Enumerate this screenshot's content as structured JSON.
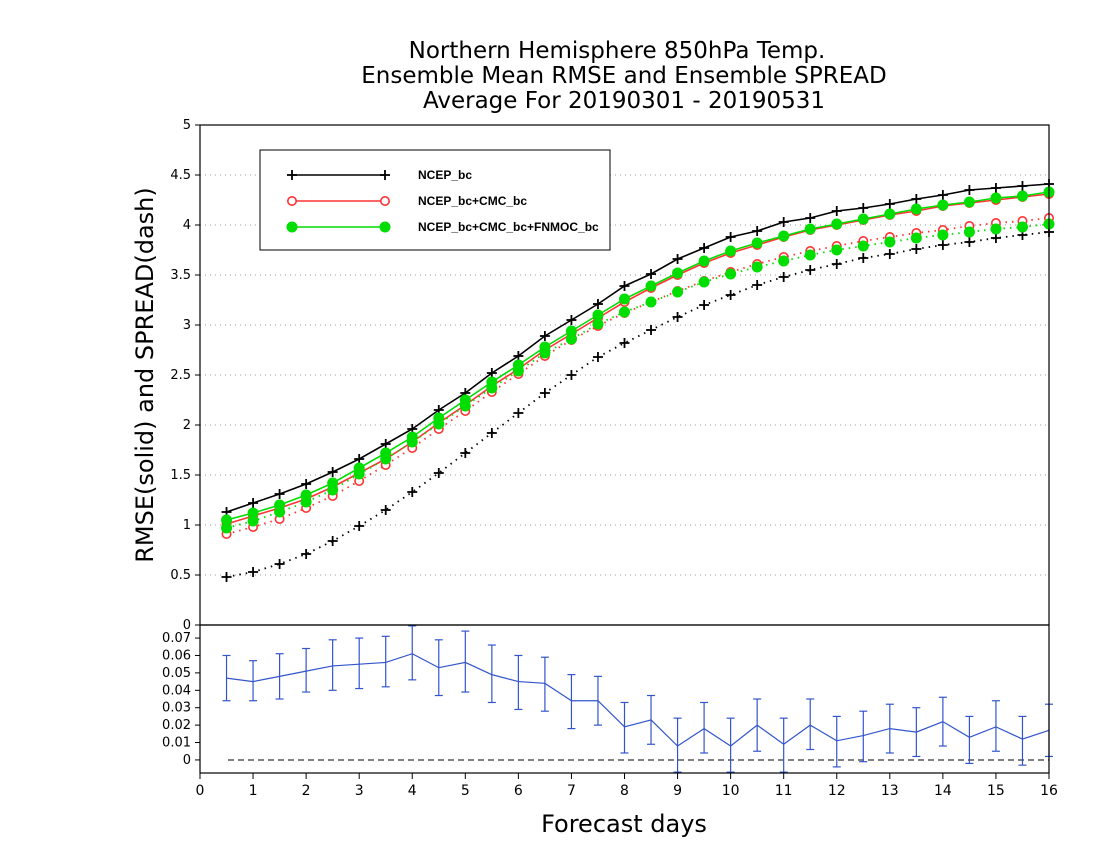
{
  "chart_data": [
    {
      "type": "line",
      "panel": "top",
      "title_lines": [
        "Northern Hemisphere 850hPa Temp.",
        "Ensemble Mean RMSE and Ensemble SPREAD",
        "Average For 20190301 - 20190531"
      ],
      "ylabel": "RMSE(solid) and SPREAD(dash)",
      "xlim": [
        0,
        16
      ],
      "ylim": [
        0,
        5
      ],
      "yticks": [
        "0",
        "0.5",
        "1",
        "1.5",
        "2",
        "2.5",
        "3",
        "3.5",
        "4",
        "4.5",
        "5"
      ],
      "grid": "horizontal dotted",
      "legend_position": "top-left",
      "legend": [
        "NCEP_bc",
        "NCEP_bc+CMC_bc",
        "NCEP_bc+CMC_bc+FNMOC_bc"
      ],
      "x": [
        0.5,
        1,
        1.5,
        2,
        2.5,
        3,
        3.5,
        4,
        4.5,
        5,
        5.5,
        6,
        6.5,
        7,
        7.5,
        8,
        8.5,
        9,
        9.5,
        10,
        10.5,
        11,
        11.5,
        12,
        12.5,
        13,
        13.5,
        14,
        14.5,
        15,
        15.5,
        16
      ],
      "series": [
        {
          "name": "NCEP_bc",
          "style": "solid",
          "marker": "plus",
          "color": "#000000",
          "values": [
            1.13,
            1.22,
            1.31,
            1.41,
            1.53,
            1.66,
            1.81,
            1.96,
            2.15,
            2.32,
            2.52,
            2.69,
            2.89,
            3.05,
            3.21,
            3.39,
            3.51,
            3.66,
            3.77,
            3.88,
            3.94,
            4.03,
            4.07,
            4.14,
            4.17,
            4.21,
            4.26,
            4.3,
            4.35,
            4.37,
            4.39,
            4.41
          ]
        },
        {
          "name": "NCEP_bc+CMC_bc",
          "style": "solid",
          "marker": "circle",
          "color": "#ff3333",
          "values": [
            1.01,
            1.09,
            1.17,
            1.26,
            1.38,
            1.52,
            1.66,
            1.83,
            2.02,
            2.2,
            2.39,
            2.56,
            2.75,
            2.91,
            3.07,
            3.23,
            3.37,
            3.5,
            3.62,
            3.72,
            3.8,
            3.88,
            3.95,
            4.0,
            4.05,
            4.1,
            4.14,
            4.19,
            4.22,
            4.25,
            4.28,
            4.31
          ]
        },
        {
          "name": "NCEP_bc+CMC_bc+FNMOC_bc",
          "style": "solid",
          "marker": "filled-circle",
          "color": "#00dd00",
          "values": [
            1.05,
            1.12,
            1.2,
            1.3,
            1.42,
            1.57,
            1.72,
            1.88,
            2.07,
            2.25,
            2.43,
            2.6,
            2.78,
            2.94,
            3.1,
            3.26,
            3.39,
            3.52,
            3.64,
            3.74,
            3.82,
            3.89,
            3.96,
            4.01,
            4.06,
            4.11,
            4.16,
            4.2,
            4.23,
            4.27,
            4.29,
            4.33
          ]
        },
        {
          "name": "NCEP_bc",
          "style": "dotted",
          "marker": "plus",
          "color": "#000000",
          "values": [
            0.48,
            0.53,
            0.61,
            0.71,
            0.84,
            0.99,
            1.15,
            1.33,
            1.52,
            1.72,
            1.92,
            2.12,
            2.32,
            2.5,
            2.68,
            2.82,
            2.95,
            3.08,
            3.2,
            3.3,
            3.4,
            3.48,
            3.55,
            3.61,
            3.67,
            3.71,
            3.76,
            3.8,
            3.83,
            3.87,
            3.9,
            3.93
          ]
        },
        {
          "name": "NCEP_bc+CMC_bc",
          "style": "dotted",
          "marker": "circle",
          "color": "#ff3333",
          "values": [
            0.91,
            0.98,
            1.06,
            1.17,
            1.29,
            1.44,
            1.6,
            1.77,
            1.96,
            2.14,
            2.33,
            2.51,
            2.69,
            2.85,
            2.99,
            3.12,
            3.23,
            3.34,
            3.44,
            3.53,
            3.61,
            3.68,
            3.74,
            3.79,
            3.84,
            3.88,
            3.92,
            3.95,
            3.99,
            4.02,
            4.04,
            4.07
          ]
        },
        {
          "name": "NCEP_bc+CMC_bc+FNMOC_bc",
          "style": "dotted",
          "marker": "filled-circle",
          "color": "#00dd00",
          "values": [
            0.97,
            1.04,
            1.13,
            1.23,
            1.35,
            1.51,
            1.66,
            1.83,
            2.01,
            2.19,
            2.37,
            2.54,
            2.72,
            2.86,
            3.01,
            3.13,
            3.23,
            3.33,
            3.43,
            3.51,
            3.58,
            3.64,
            3.7,
            3.75,
            3.79,
            3.83,
            3.87,
            3.9,
            3.93,
            3.96,
            3.98,
            4.01
          ]
        }
      ]
    },
    {
      "type": "line",
      "panel": "bottom",
      "xlabel": "Forecast days",
      "xlim": [
        0,
        16
      ],
      "xticks": [
        "0",
        "1",
        "2",
        "3",
        "4",
        "5",
        "6",
        "7",
        "8",
        "9",
        "10",
        "11",
        "12",
        "13",
        "14",
        "15",
        "16"
      ],
      "ylim": [
        -0.0075,
        0.0775
      ],
      "yticks": [
        "0",
        "0.01",
        "0.02",
        "0.03",
        "0.04",
        "0.05",
        "0.06",
        "0.07"
      ],
      "zero_line": "dashed",
      "color": "#3355cc",
      "x": [
        0.5,
        1,
        1.5,
        2,
        2.5,
        3,
        3.5,
        4,
        4.5,
        5,
        5.5,
        6,
        6.5,
        7,
        7.5,
        8,
        8.5,
        9,
        9.5,
        10,
        10.5,
        11,
        11.5,
        12,
        12.5,
        13,
        13.5,
        14,
        14.5,
        15,
        15.5,
        16
      ],
      "values": [
        0.047,
        0.045,
        0.048,
        0.051,
        0.054,
        0.055,
        0.056,
        0.061,
        0.053,
        0.056,
        0.049,
        0.045,
        0.044,
        0.034,
        0.034,
        0.019,
        0.023,
        0.008,
        0.018,
        0.008,
        0.02,
        0.009,
        0.02,
        0.011,
        0.014,
        0.018,
        0.016,
        0.022,
        0.013,
        0.019,
        0.012,
        0.017
      ],
      "err_low": [
        0.034,
        0.034,
        0.035,
        0.039,
        0.04,
        0.041,
        0.042,
        0.046,
        0.037,
        0.039,
        0.033,
        0.029,
        0.028,
        0.018,
        0.02,
        0.004,
        0.009,
        -0.007,
        0.004,
        -0.007,
        0.005,
        -0.007,
        0.006,
        -0.004,
        -0.001,
        0.004,
        0.002,
        0.008,
        -0.002,
        0.005,
        -0.003,
        0.002
      ],
      "err_high": [
        0.06,
        0.057,
        0.061,
        0.064,
        0.069,
        0.07,
        0.071,
        0.077,
        0.069,
        0.074,
        0.066,
        0.06,
        0.059,
        0.049,
        0.048,
        0.033,
        0.037,
        0.024,
        0.033,
        0.024,
        0.035,
        0.024,
        0.035,
        0.025,
        0.028,
        0.032,
        0.03,
        0.036,
        0.025,
        0.034,
        0.025,
        0.032
      ]
    }
  ]
}
